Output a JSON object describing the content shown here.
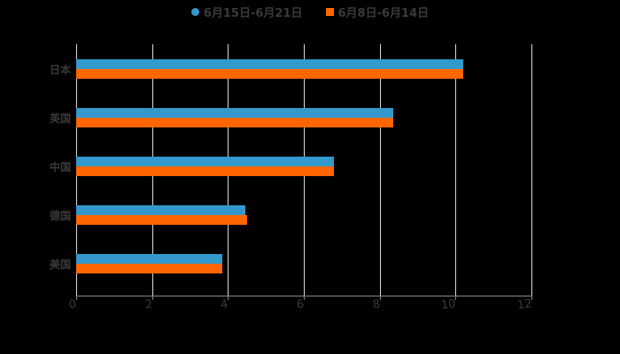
{
  "chart_data": {
    "type": "bar",
    "orientation": "horizontal",
    "title": "",
    "xlabel": "",
    "ylabel": "",
    "categories": [
      "日本",
      "英国",
      "中国",
      "德国",
      "美国"
    ],
    "series": [
      {
        "name": "6月15日-6月21日",
        "color": "#3399cc",
        "values": [
          10.2,
          8.35,
          6.8,
          4.45,
          3.85
        ]
      },
      {
        "name": "6月8日-6月14日",
        "color": "#ff6600",
        "values": [
          10.2,
          8.35,
          6.8,
          4.5,
          3.85
        ]
      }
    ],
    "xlim": [
      0,
      12
    ],
    "xticks": [
      "0",
      "2",
      "4",
      "6",
      "8",
      "10",
      "12"
    ],
    "grid": true,
    "legend_position": "top"
  },
  "legend": {
    "items": [
      {
        "label": "6月15日-6月21日",
        "color": "#3399cc",
        "shape": "circle"
      },
      {
        "label": "6月8日-6月14日",
        "color": "#ff6600",
        "shape": "square"
      }
    ]
  },
  "colors": {
    "background": "#000000",
    "text": "#3a3a3a",
    "grid": "#d8d8d8"
  }
}
